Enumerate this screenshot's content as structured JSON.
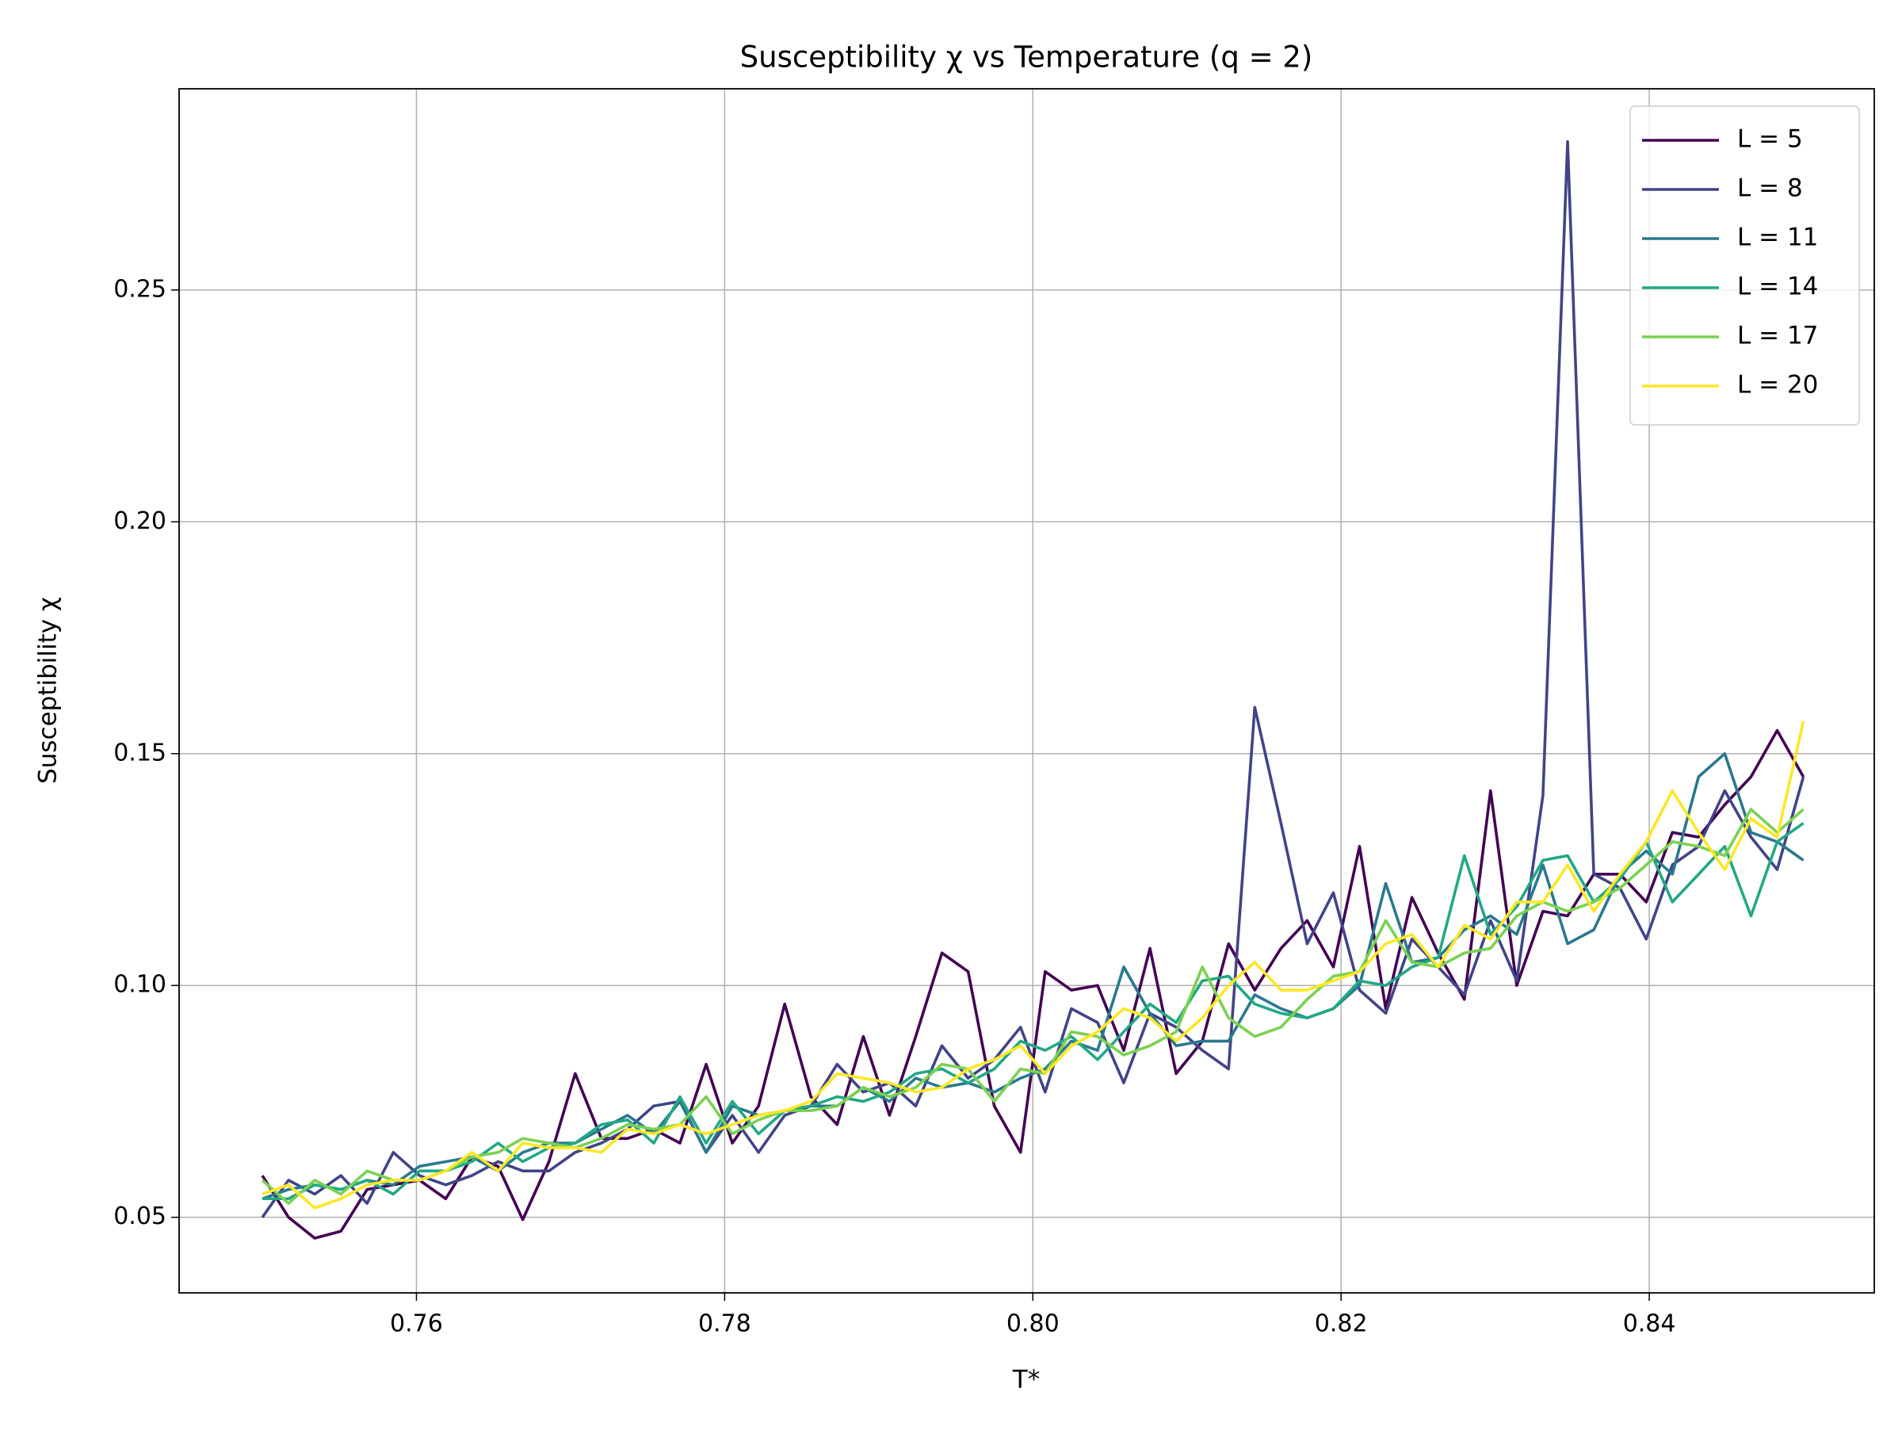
{
  "chart_data": {
    "type": "line",
    "title": "Susceptibility χ vs Temperature (q = 2)",
    "x_label": "T*",
    "y_label": "Susceptibility χ",
    "grid": true,
    "legend": "upper right",
    "xlim": [
      0.7446,
      0.8546
    ],
    "ylim": [
      0.0337,
      0.2934
    ],
    "xticks": [
      0.76,
      0.78,
      {
        "value": 0.8,
        "label": "0.80"
      },
      0.82,
      0.84
    ],
    "yticks": [
      0.05,
      {
        "value": 0.1,
        "label": "0.10"
      },
      0.15,
      {
        "value": 0.2,
        "label": "0.20"
      },
      0.25
    ],
    "x": [
      0.75,
      0.7517,
      0.7534,
      0.7551,
      0.7568,
      0.7585,
      0.7602,
      0.7619,
      0.7636,
      0.7653,
      0.7669,
      0.7686,
      0.7703,
      0.772,
      0.7737,
      0.7754,
      0.7771,
      0.7788,
      0.7805,
      0.7822,
      0.7839,
      0.7856,
      0.7873,
      0.789,
      0.7907,
      0.7924,
      0.7941,
      0.7958,
      0.7975,
      0.7992,
      0.8008,
      0.8025,
      0.8042,
      0.8059,
      0.8076,
      0.8093,
      0.811,
      0.8127,
      0.8144,
      0.8161,
      0.8178,
      0.8195,
      0.8212,
      0.8229,
      0.8246,
      0.8263,
      0.828,
      0.8297,
      0.8314,
      0.8331,
      0.8347,
      0.8364,
      0.8381,
      0.8398,
      0.8415,
      0.8432,
      0.8449,
      0.8466,
      0.8483,
      0.85
    ],
    "series": [
      {
        "name": "L = 5",
        "color": "#440154",
        "values": [
          0.059,
          0.05,
          0.0455,
          0.047,
          0.056,
          0.057,
          0.058,
          0.054,
          0.063,
          0.061,
          0.0495,
          0.062,
          0.081,
          0.067,
          0.067,
          0.069,
          0.066,
          0.083,
          0.066,
          0.074,
          0.096,
          0.076,
          0.07,
          0.089,
          0.072,
          0.089,
          0.107,
          0.103,
          0.074,
          0.064,
          0.103,
          0.099,
          0.1,
          0.086,
          0.108,
          0.081,
          0.088,
          0.109,
          0.099,
          0.108,
          0.114,
          0.104,
          0.13,
          0.095,
          0.119,
          0.107,
          0.097,
          0.142,
          0.1,
          0.116,
          0.115,
          0.124,
          0.124,
          0.118,
          0.133,
          0.132,
          0.139,
          0.145,
          0.155,
          0.145
        ]
      },
      {
        "name": "L = 8",
        "color": "#414487",
        "values": [
          0.05,
          0.058,
          0.055,
          0.059,
          0.053,
          0.064,
          0.059,
          0.057,
          0.059,
          0.062,
          0.06,
          0.06,
          0.064,
          0.066,
          0.069,
          0.074,
          0.075,
          0.064,
          0.072,
          0.064,
          0.072,
          0.074,
          0.083,
          0.077,
          0.079,
          0.074,
          0.087,
          0.08,
          0.084,
          0.091,
          0.077,
          0.095,
          0.092,
          0.079,
          0.094,
          0.091,
          0.086,
          0.082,
          0.16,
          0.135,
          0.109,
          0.12,
          0.099,
          0.094,
          0.11,
          0.104,
          0.098,
          0.114,
          0.101,
          0.141,
          0.282,
          0.124,
          0.121,
          0.11,
          0.126,
          0.13,
          0.142,
          0.132,
          0.125,
          0.145
        ]
      },
      {
        "name": "L = 11",
        "color": "#2a788e",
        "values": [
          0.054,
          0.056,
          0.057,
          0.056,
          0.058,
          0.057,
          0.061,
          0.062,
          0.063,
          0.06,
          0.064,
          0.066,
          0.066,
          0.069,
          0.072,
          0.068,
          0.075,
          0.064,
          0.074,
          0.072,
          0.073,
          0.074,
          0.074,
          0.078,
          0.075,
          0.08,
          0.078,
          0.079,
          0.077,
          0.08,
          0.082,
          0.088,
          0.086,
          0.104,
          0.094,
          0.087,
          0.088,
          0.088,
          0.098,
          0.095,
          0.093,
          0.095,
          0.1,
          0.122,
          0.105,
          0.106,
          0.112,
          0.115,
          0.111,
          0.126,
          0.109,
          0.112,
          0.124,
          0.129,
          0.124,
          0.145,
          0.15,
          0.133,
          0.131,
          0.127
        ]
      },
      {
        "name": "L = 14",
        "color": "#22a884",
        "values": [
          0.054,
          0.054,
          0.057,
          0.056,
          0.058,
          0.055,
          0.06,
          0.06,
          0.062,
          0.066,
          0.062,
          0.065,
          0.066,
          0.07,
          0.071,
          0.066,
          0.076,
          0.066,
          0.075,
          0.068,
          0.073,
          0.074,
          0.076,
          0.075,
          0.077,
          0.081,
          0.082,
          0.079,
          0.082,
          0.088,
          0.086,
          0.089,
          0.084,
          0.09,
          0.096,
          0.092,
          0.101,
          0.102,
          0.096,
          0.094,
          0.093,
          0.095,
          0.101,
          0.1,
          0.104,
          0.106,
          0.128,
          0.111,
          0.117,
          0.127,
          0.128,
          0.118,
          0.123,
          0.131,
          0.118,
          0.124,
          0.13,
          0.115,
          0.131,
          0.135
        ]
      },
      {
        "name": "L = 17",
        "color": "#7ad151",
        "values": [
          0.058,
          0.053,
          0.058,
          0.055,
          0.06,
          0.058,
          0.058,
          0.06,
          0.063,
          0.064,
          0.067,
          0.066,
          0.065,
          0.067,
          0.07,
          0.069,
          0.07,
          0.076,
          0.068,
          0.071,
          0.073,
          0.073,
          0.074,
          0.078,
          0.076,
          0.078,
          0.083,
          0.082,
          0.075,
          0.082,
          0.081,
          0.09,
          0.089,
          0.085,
          0.087,
          0.09,
          0.104,
          0.093,
          0.089,
          0.091,
          0.097,
          0.102,
          0.103,
          0.114,
          0.105,
          0.104,
          0.107,
          0.108,
          0.115,
          0.118,
          0.116,
          0.118,
          0.121,
          0.126,
          0.131,
          0.13,
          0.128,
          0.138,
          0.133,
          0.138
        ]
      },
      {
        "name": "L = 20",
        "color": "#fde725",
        "values": [
          0.055,
          0.057,
          0.052,
          0.054,
          0.057,
          0.058,
          0.058,
          0.06,
          0.064,
          0.06,
          0.066,
          0.065,
          0.065,
          0.064,
          0.069,
          0.068,
          0.07,
          0.068,
          0.07,
          0.072,
          0.073,
          0.075,
          0.081,
          0.08,
          0.079,
          0.077,
          0.078,
          0.082,
          0.084,
          0.087,
          0.081,
          0.087,
          0.09,
          0.095,
          0.093,
          0.088,
          0.093,
          0.1,
          0.105,
          0.099,
          0.099,
          0.101,
          0.103,
          0.109,
          0.111,
          0.104,
          0.113,
          0.11,
          0.118,
          0.118,
          0.126,
          0.116,
          0.124,
          0.131,
          0.142,
          0.133,
          0.125,
          0.136,
          0.132,
          0.157
        ]
      }
    ]
  }
}
